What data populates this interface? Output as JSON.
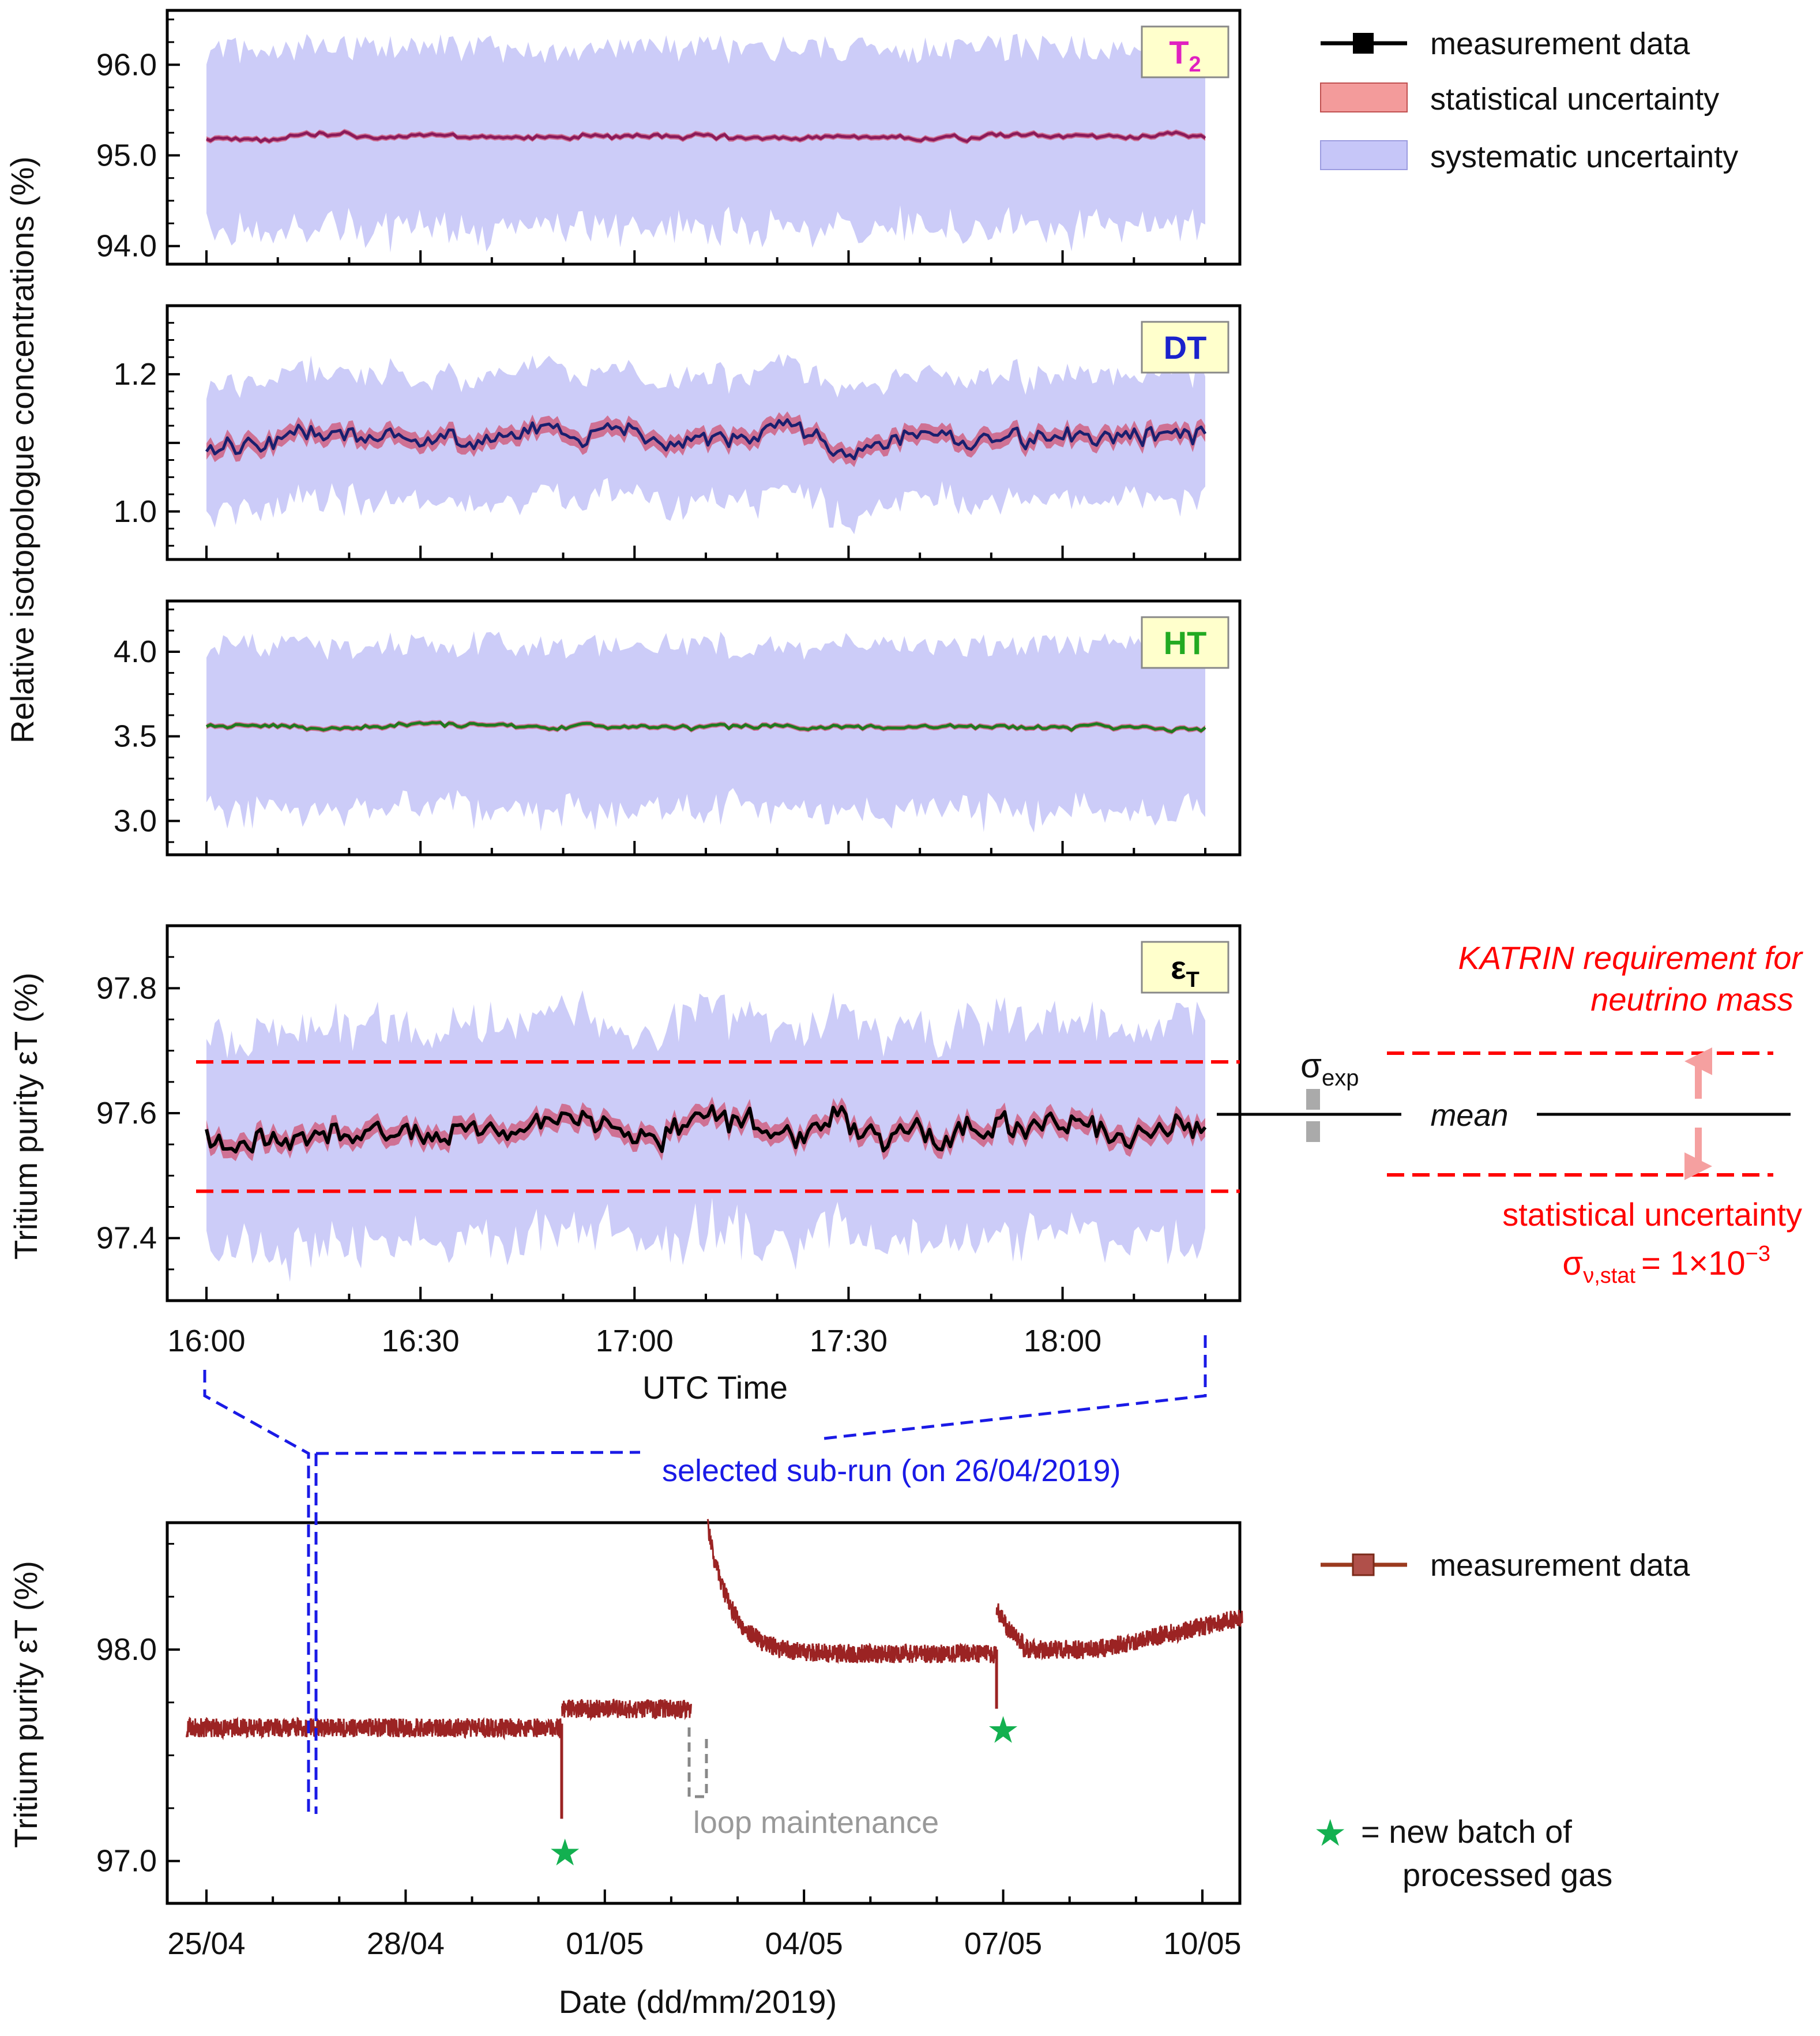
{
  "figure": {
    "shared_ylabel": "Relative isotopologue concentrations (%)",
    "legend_top": {
      "measurement": "measurement data",
      "stat": "statistical uncertainty",
      "sys": "systematic uncertainty"
    },
    "legend_bottom": {
      "measurement": "measurement data",
      "star_line1": "= new batch of",
      "star_line2": "processed gas"
    },
    "annotations": {
      "katrin_line1": "KATRIN requirement for",
      "katrin_line2": "neutrino mass",
      "stat_unc": "statistical uncertainty",
      "sigma_nu_prefix": "σ",
      "sigma_nu_sub": "ν,stat",
      "sigma_nu_value": "= 1×10",
      "sigma_nu_exp": "−3",
      "sigma_exp_main": "σ",
      "sigma_exp_sub": "exp",
      "mean": "mean",
      "selected_subrun": "selected sub-run (on 26/04/2019)",
      "loop_maintenance": "loop maintenance"
    },
    "colors": {
      "t2_line": "#8b1a5a",
      "dt_line": "#1a1f6e",
      "ht_line": "#1e7a1e",
      "purity_line": "#000000",
      "longterm_line": "#9b2323",
      "stat_band": "#d05a7a",
      "sys_band": "#c3c3f7",
      "katrin_red": "#ff0000",
      "selection_blue": "#1a1ae6",
      "star_green": "#13b050",
      "grey": "#999999"
    }
  },
  "chart_data": [
    {
      "id": "t2",
      "type": "line",
      "badge": "T",
      "badge_sub": "2",
      "badge_color": "#e020c0",
      "ylim": [
        93.8,
        96.6
      ],
      "yticks": [
        94.0,
        95.0,
        96.0
      ],
      "ytick_labels": [
        "94.0",
        "95.0",
        "96.0"
      ],
      "x_range_minutes": [
        0,
        140
      ],
      "mean": 95.2,
      "noise": 0.04,
      "stat_half": 0.03,
      "sys_half": 0.97,
      "seed": 11
    },
    {
      "id": "dt",
      "type": "line",
      "badge": "DT",
      "badge_sub": "",
      "badge_color": "#1a22cc",
      "ylim": [
        0.93,
        1.3
      ],
      "yticks": [
        1.0,
        1.1,
        1.2
      ],
      "ytick_labels": [
        "1.0",
        "",
        "1.2"
      ],
      "x_range_minutes": [
        0,
        140
      ],
      "mean": 1.105,
      "noise": 0.02,
      "stat_half": 0.012,
      "sys_half": 0.09,
      "seed": 23
    },
    {
      "id": "ht",
      "type": "line",
      "badge": "HT",
      "badge_sub": "",
      "badge_color": "#22aa22",
      "ylim": [
        2.8,
        4.3
      ],
      "yticks": [
        3.0,
        3.5,
        4.0
      ],
      "ytick_labels": [
        "3.0",
        "3.5",
        "4.0"
      ],
      "x_range_minutes": [
        0,
        140
      ],
      "mean": 3.56,
      "noise": 0.02,
      "stat_half": 0.015,
      "sys_half": 0.48,
      "seed": 37
    },
    {
      "id": "purity",
      "type": "line",
      "badge": "ε",
      "badge_sub": "T",
      "badge_color": "#000000",
      "ylabel": "Tritium purity εT (%)",
      "xlabel": "UTC Time",
      "xticks_minutes": [
        0,
        30,
        60,
        90,
        120
      ],
      "xtick_labels": [
        "16:00",
        "16:30",
        "17:00",
        "17:30",
        "18:00"
      ],
      "x_range_minutes": [
        0,
        140
      ],
      "ylim": [
        97.3,
        97.9
      ],
      "yticks": [
        97.4,
        97.6,
        97.8
      ],
      "ytick_labels": [
        "97.4",
        "97.6",
        "97.8"
      ],
      "mean": 97.575,
      "noise": 0.03,
      "stat_half": 0.015,
      "sys_half": 0.17,
      "requirement_upper": 97.682,
      "requirement_lower": 97.475,
      "seed": 53
    },
    {
      "id": "longterm",
      "type": "line",
      "ylabel": "Tritium purity εT (%)",
      "xlabel": "Date (dd/mm/2019)",
      "x_range_days": [
        0,
        15.5
      ],
      "xticks_days": [
        0,
        3,
        6,
        9,
        12,
        15
      ],
      "xtick_labels": [
        "25/04",
        "28/04",
        "01/05",
        "04/05",
        "07/05",
        "10/05"
      ],
      "ylim": [
        96.8,
        98.6
      ],
      "yticks": [
        97.0,
        98.0
      ],
      "ytick_labels": [
        "97.0",
        "98.0"
      ],
      "segments": [
        {
          "start": -0.3,
          "end": 5.35,
          "level": 97.63,
          "dip_at": 5.35,
          "dip_to": 97.2
        },
        {
          "start": 5.35,
          "end": 7.3,
          "level": 97.72
        },
        {
          "start": 7.55,
          "end": 11.9,
          "level": 97.98,
          "spike_to": 98.58,
          "dip_at": 11.9,
          "dip_to": 97.72
        },
        {
          "start": 11.9,
          "end": 15.6,
          "level": 98.0,
          "end_level": 98.15
        }
      ],
      "new_batch_days": [
        5.4,
        12.0
      ],
      "selected_day": 1.7,
      "maintenance_start_day": 7.3,
      "maintenance_end_day": 7.6
    }
  ]
}
